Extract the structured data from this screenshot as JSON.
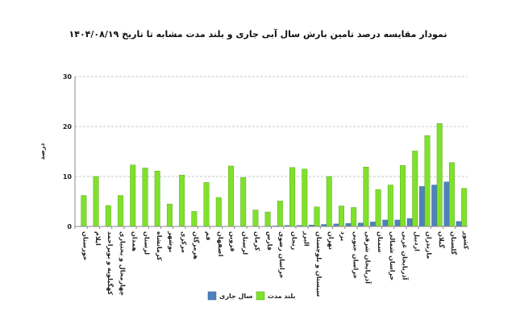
{
  "chart_data": {
    "type": "bar",
    "title": "نمودار  مقایسه درصد تامین بارش سال آبی جاری و بلند مدت مشابه تا تاریخ ۱۴۰۴/۰۸/۱۹",
    "ylabel": "درصد",
    "xlabel": "",
    "ylim": [
      0,
      30
    ],
    "yticks": [
      "0",
      "10",
      "20",
      "30"
    ],
    "grid": true,
    "legend_position": "bottom",
    "categories": [
      "خوزستان",
      "ایلام",
      "کهگیلویه و بویراحمد",
      "چهارمحال و بختیاری",
      "همدان",
      "لرستان",
      "کرمانشاه",
      "بوشهر",
      "مرکزی",
      "هرمزگان",
      "قم",
      "اصفهان",
      "قزوین",
      "لرستان",
      "کرمان",
      "فارس",
      "خراسان رضوی",
      "زنجان",
      "البرز",
      "سیستان و بلوچستان",
      "تهران",
      "یزد",
      "خراسان جنوبی",
      "آذربایجان شرقی",
      "سمنان",
      "خراسان شمالی",
      "آذربایجان غربی",
      "اردبیل",
      "مازندران",
      "گیلان",
      "گلستان",
      "کشور"
    ],
    "series": [
      {
        "name": "سال جاری",
        "color": "#4f81bd",
        "values": [
          0,
          0,
          0,
          0,
          0,
          0,
          0,
          0,
          0,
          0,
          0,
          0,
          0,
          0,
          0,
          0,
          0.1,
          0.2,
          0.2,
          0.3,
          0.4,
          0.5,
          0.6,
          0.7,
          0.9,
          1.3,
          1.3,
          1.6,
          8.0,
          8.3,
          8.9,
          1.0
        ]
      },
      {
        "name": "بلند مدت",
        "color": "#7fe12a",
        "values": [
          6.2,
          10.0,
          4.2,
          6.2,
          12.3,
          11.7,
          11.1,
          4.5,
          10.3,
          3.0,
          8.8,
          5.8,
          12.1,
          9.8,
          3.3,
          2.9,
          5.1,
          11.8,
          11.5,
          3.9,
          10.0,
          4.1,
          3.8,
          11.9,
          7.4,
          8.3,
          12.2,
          15.1,
          18.2,
          20.6,
          12.8,
          7.6
        ]
      }
    ]
  }
}
